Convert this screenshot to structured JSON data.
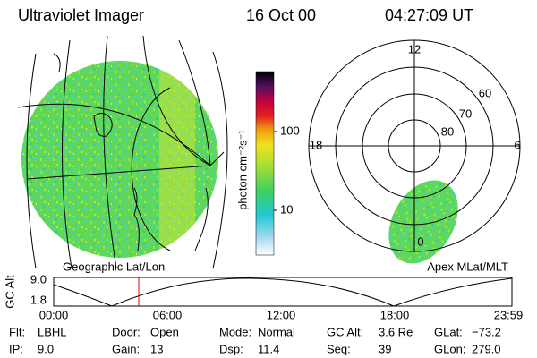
{
  "header": {
    "instrument": "Ultraviolet Imager",
    "date": "16 Oct 00",
    "time": "04:27:09 UT"
  },
  "colorbar": {
    "label": "photon cm⁻²s⁻¹",
    "ticks": [
      "100",
      "10"
    ]
  },
  "left_panel": {
    "label": "Geographic Lat/Lon"
  },
  "right_panel": {
    "label": "Apex MLat/MLT",
    "mlt_labels": [
      "12",
      "18",
      "6",
      "0"
    ],
    "lat_labels": [
      "60",
      "70",
      "80"
    ]
  },
  "altitude_plot": {
    "ylabel": "GC Alt",
    "yticks": [
      "9.0",
      "1.8"
    ],
    "xticks": [
      "00:00",
      "06:00",
      "12:00",
      "18:00",
      "23:59"
    ]
  },
  "footer": {
    "rows": [
      [
        [
          "Flt:",
          "LBHL"
        ],
        [
          "Door:",
          "Open"
        ],
        [
          "Mode:",
          "Normal"
        ],
        [
          "GC Alt:",
          "3.6 Re"
        ],
        [
          "GLat:",
          "−73.2"
        ]
      ],
      [
        [
          "IP:",
          "9.0"
        ],
        [
          "Gain:",
          "13"
        ],
        [
          "Dsp:",
          "11.4"
        ],
        [
          "Seq:",
          "39"
        ],
        [
          "GLon:",
          "279.0"
        ]
      ]
    ]
  }
}
